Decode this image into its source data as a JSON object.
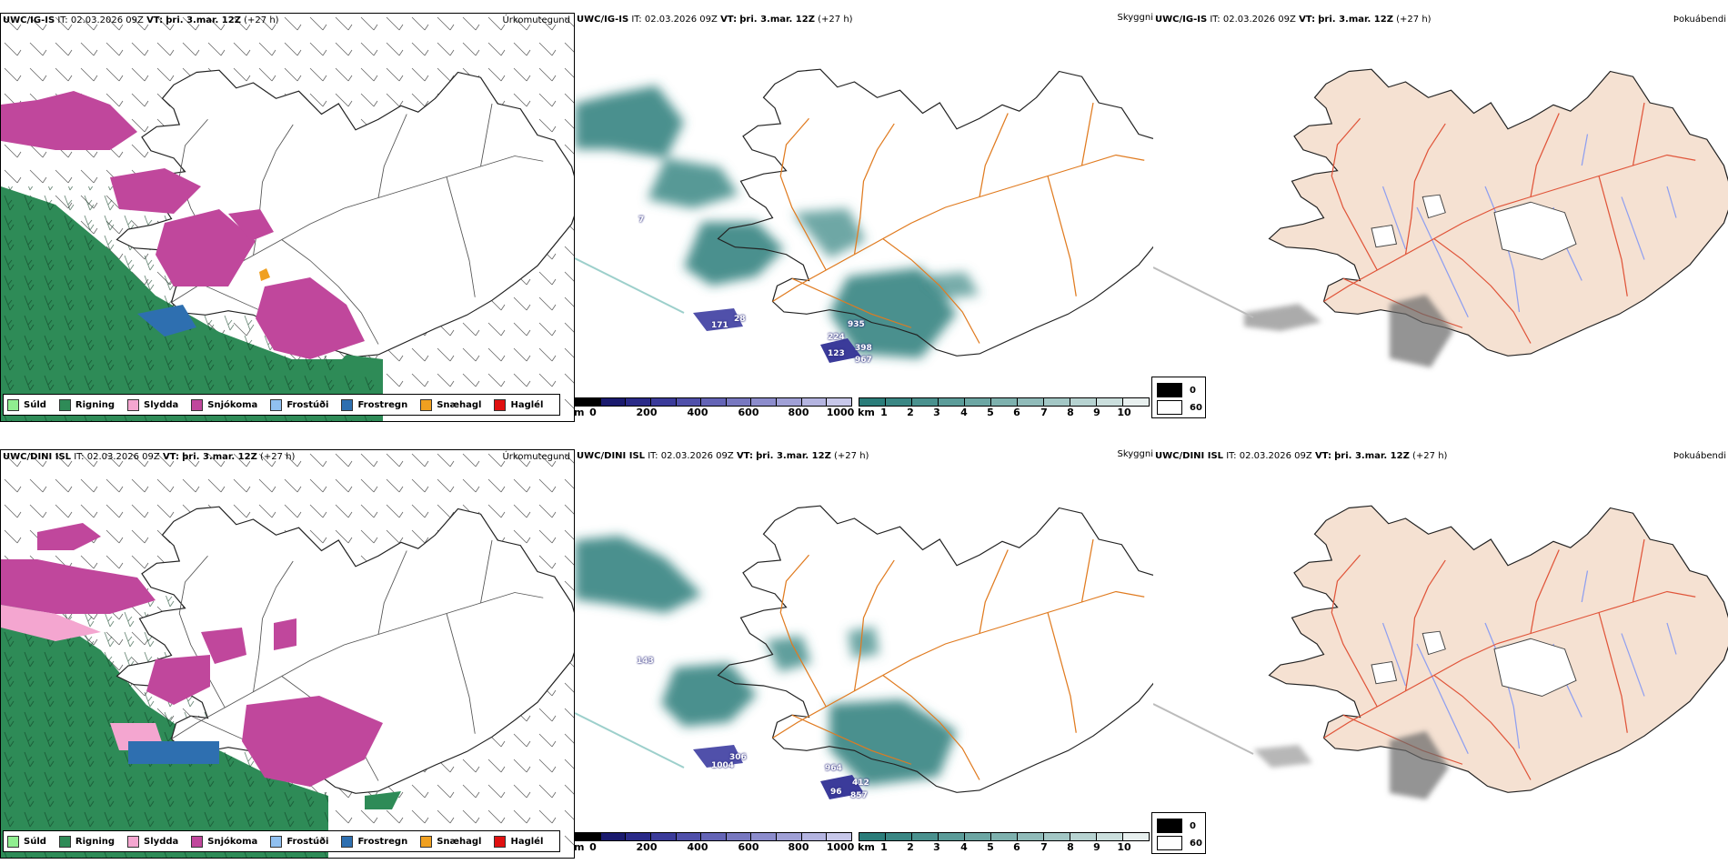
{
  "rows": [
    {
      "model": "UWC/IG-IS",
      "it_label": "IT:",
      "it_value": "02.03.2026 09Z",
      "vt_label": "VT:",
      "vt_value": "þri. 3.mar. 12Z",
      "lead": "(+27 h)",
      "precip_title": "Úrkomutegund",
      "vis_title": "Skyggni",
      "fog_title": "Þokuábendi",
      "labels": [
        "7",
        "28",
        "171",
        "935",
        "224",
        "123",
        "398",
        "967"
      ]
    },
    {
      "model": "UWC/DINI ISL",
      "it_label": "IT:",
      "it_value": "02.03.2026 09Z",
      "vt_label": "VT:",
      "vt_value": "þri. 3.mar. 12Z",
      "lead": "(+27 h)",
      "precip_title": "Úrkomutegund",
      "vis_title": "Skyggni",
      "fog_title": "Þokuábendi",
      "labels": [
        "143",
        "306",
        "1004",
        "964",
        "412",
        "96",
        "857"
      ]
    }
  ],
  "precip_legend": [
    {
      "label": "Súld",
      "color": "#90ee90"
    },
    {
      "label": "Rigning",
      "color": "#2e8b57"
    },
    {
      "label": "Slydda",
      "color": "#f4a6d0"
    },
    {
      "label": "Snjókoma",
      "color": "#c0479c"
    },
    {
      "label": "Frostúði",
      "color": "#90c0f0"
    },
    {
      "label": "Frostregn",
      "color": "#2e6fb0"
    },
    {
      "label": "Snæhagl",
      "color": "#f0a020"
    },
    {
      "label": "Haglél",
      "color": "#e01010"
    }
  ],
  "cloud_base_bar": {
    "unit": "m",
    "ticks": [
      "0",
      "200",
      "400",
      "600",
      "800",
      "1000"
    ],
    "colors": [
      "#000000",
      "#1a1a6e",
      "#2a2a88",
      "#3b3b9a",
      "#5050aa",
      "#6464b6",
      "#7878c0",
      "#8c8ccc",
      "#a0a0d6",
      "#b4b4e0",
      "#c8c8ea"
    ]
  },
  "visibility_bar": {
    "unit": "km",
    "ticks": [
      "1",
      "2",
      "3",
      "4",
      "5",
      "6",
      "7",
      "8",
      "9",
      "10"
    ],
    "colors": [
      "#2b7d7a",
      "#3a8784",
      "#4a918e",
      "#5b9c99",
      "#6ca6a3",
      "#7eb1ae",
      "#90bbb9",
      "#a3c7c5",
      "#b7d3d1",
      "#cbdfdd",
      "#e8f0ef"
    ]
  },
  "fog_legend": [
    {
      "label": "0",
      "color": "#000000"
    },
    {
      "label": "60",
      "color": "#ffffff"
    }
  ]
}
